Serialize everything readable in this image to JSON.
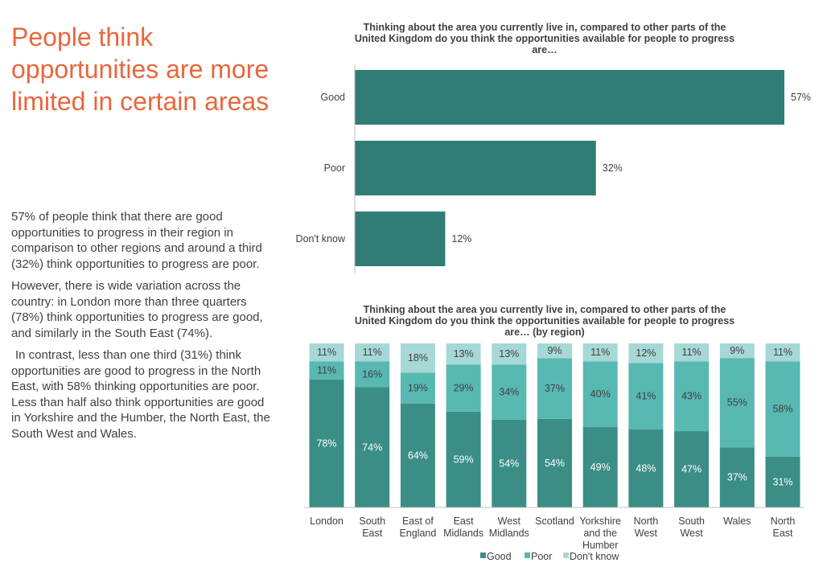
{
  "headline": "People think opportunities are more limited in certain areas",
  "paragraphs": [
    "57% of people think that there are good opportunities to progress in their region in comparison to other regions and around a third (32%) think opportunities to progress are poor.",
    "However, there is wide variation across the country: in London more than three quarters (78%) think opportunities to progress are good, and similarly in the South East (74%).",
    "In contrast, less than one third (31%) think opportunities are good to progress in the North East, with 58% thinking opportunities are poor. Less than half also think opportunities are good in Yorkshire and the Humber, the North East, the South West and Wales."
  ],
  "colors": {
    "good": "#3a8e86",
    "bar_top": "#307c77",
    "poor": "#58b8b2",
    "dontknow": "#a6d8d6",
    "headline": "#e8673c"
  },
  "chart_data": [
    {
      "type": "bar",
      "orientation": "horizontal",
      "title_lines": [
        "Thinking about the area you currently live in, compared to other parts of the",
        "United Kingdom do you think the opportunities available for people to progress",
        "are…"
      ],
      "categories": [
        "Good",
        "Poor",
        "Don't know"
      ],
      "values": [
        57,
        32,
        12
      ],
      "value_labels": [
        "57%",
        "32%",
        "12%"
      ],
      "xlim": [
        0,
        57
      ]
    },
    {
      "type": "bar",
      "stacked": true,
      "title_lines": [
        "Thinking about the area you currently live in, compared to other parts of the",
        "United Kingdom do you think the opportunities available for people to progress",
        "are… (by region)"
      ],
      "categories": [
        [
          "London"
        ],
        [
          "South",
          "East"
        ],
        [
          "East of",
          "England"
        ],
        [
          "East",
          "Midlands"
        ],
        [
          "West",
          "Midlands"
        ],
        [
          "Scotland"
        ],
        [
          "Yorkshire",
          "and the",
          "Humber"
        ],
        [
          "North",
          "West"
        ],
        [
          "South",
          "West"
        ],
        [
          "Wales"
        ],
        [
          "North",
          "East"
        ]
      ],
      "series": [
        {
          "name": "Good",
          "values": [
            78,
            74,
            64,
            59,
            54,
            54,
            49,
            48,
            47,
            37,
            31
          ]
        },
        {
          "name": "Poor",
          "values": [
            11,
            16,
            19,
            29,
            34,
            37,
            40,
            41,
            43,
            55,
            58
          ]
        },
        {
          "name": "Don't know",
          "values": [
            11,
            11,
            18,
            13,
            13,
            9,
            11,
            12,
            11,
            9,
            11
          ]
        }
      ],
      "ylim": [
        0,
        100
      ],
      "legend": [
        "Good",
        "Poor",
        "Don't know"
      ],
      "legend_position": "bottom"
    }
  ]
}
